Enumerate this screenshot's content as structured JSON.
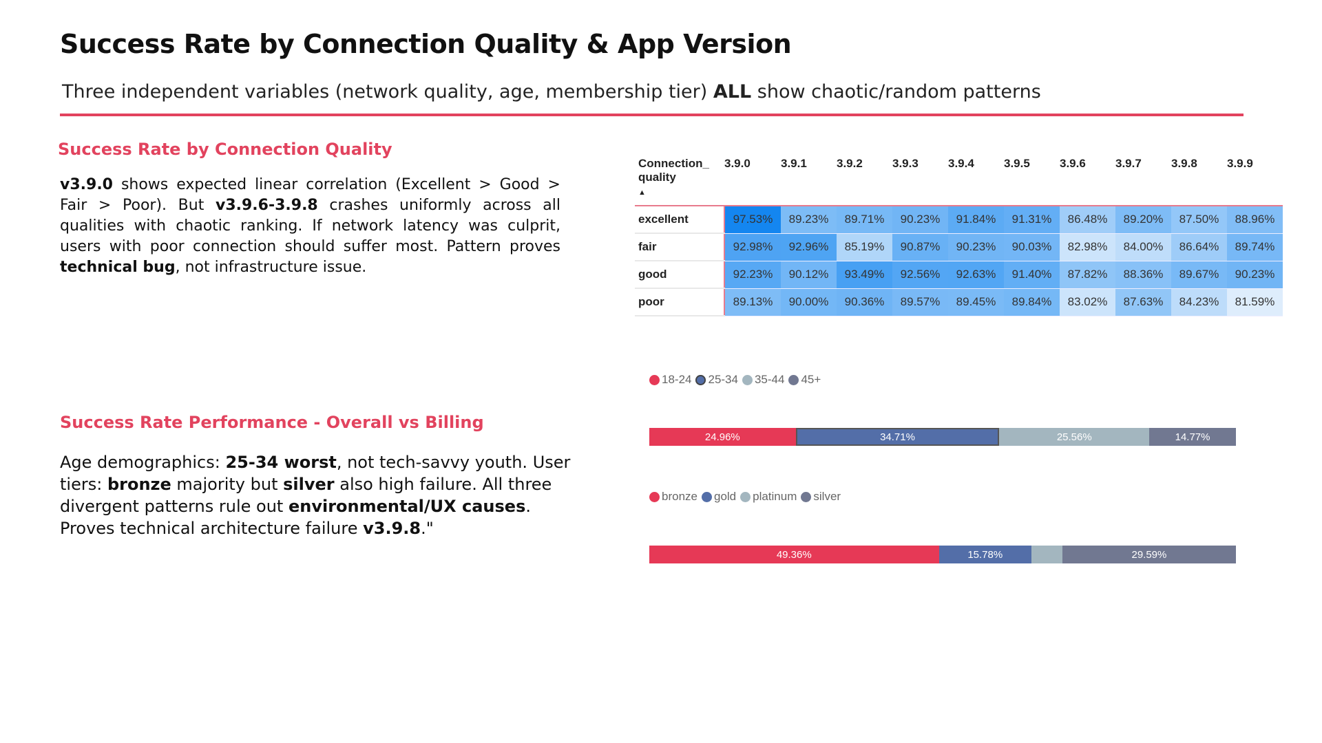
{
  "title": "Success Rate by Connection Quality & App Version",
  "subtitle": {
    "pre": "Three independent variables (network quality, age, membership tier) ",
    "bold": "ALL",
    "post": " show chaotic/random patterns"
  },
  "section1": {
    "heading": "Success Rate by Connection Quality",
    "text": [
      {
        "b": "v3.9.0"
      },
      {
        "t": " shows expected linear correlation (Excellent > Good > Fair > Poor). But "
      },
      {
        "b": "v3.9.6-3.9.8"
      },
      {
        "t": " crashes uniformly across all qualities with chaotic ranking. If network latency was culprit, users with poor connection should suffer most. Pattern proves "
      },
      {
        "b": "technical bug"
      },
      {
        "t": ", not infrastructure issue."
      }
    ]
  },
  "section2": {
    "heading": "Success Rate Performance - Overall vs Billing",
    "text": [
      {
        "t": "Age demographics: "
      },
      {
        "b": "25-34 worst"
      },
      {
        "t": ", not tech-savvy youth. User tiers: "
      },
      {
        "b": "bronze"
      },
      {
        "t": " majority but "
      },
      {
        "b": "silver"
      },
      {
        "t": " also high failure. All three divergent patterns rule out "
      },
      {
        "b": "environmental/UX causes"
      },
      {
        "t": ". Proves technical architecture failure "
      },
      {
        "b": "v3.9.8"
      },
      {
        "t": ".\""
      }
    ]
  },
  "chart_data": [
    {
      "type": "heatmap",
      "row_header": "Connection_ quality",
      "sort_indicator": "ascending",
      "columns": [
        "3.9.0",
        "3.9.1",
        "3.9.2",
        "3.9.3",
        "3.9.4",
        "3.9.5",
        "3.9.6",
        "3.9.7",
        "3.9.8",
        "3.9.9"
      ],
      "rows": [
        {
          "label": "excellent",
          "values": [
            97.53,
            89.23,
            89.71,
            90.23,
            91.84,
            91.31,
            86.48,
            89.2,
            87.5,
            88.96
          ]
        },
        {
          "label": "fair",
          "values": [
            92.98,
            92.96,
            85.19,
            90.87,
            90.23,
            90.03,
            82.98,
            84.0,
            86.64,
            89.74
          ]
        },
        {
          "label": "good",
          "values": [
            92.23,
            90.12,
            93.49,
            92.56,
            92.63,
            91.4,
            87.82,
            88.36,
            89.67,
            90.23
          ]
        },
        {
          "label": "poor",
          "values": [
            89.13,
            90.0,
            90.36,
            89.57,
            89.45,
            89.84,
            83.02,
            87.63,
            84.23,
            81.59
          ]
        }
      ],
      "unit": "%"
    },
    {
      "type": "bar",
      "stacked": "100%",
      "legend": "top-left",
      "series": [
        {
          "name": "18-24",
          "value": 24.96,
          "color": "#e63956",
          "label": "24.96%"
        },
        {
          "name": "25-34",
          "value": 34.71,
          "color": "#536ea8",
          "label": "34.71%"
        },
        {
          "name": "35-44",
          "value": 25.56,
          "color": "#a3b6bf",
          "label": "25.56%"
        },
        {
          "name": "45+",
          "value": 14.77,
          "color": "#717891",
          "label": "14.77%"
        }
      ]
    },
    {
      "type": "bar",
      "stacked": "100%",
      "legend": "top-left",
      "series": [
        {
          "name": "bronze",
          "value": 49.36,
          "color": "#e63956",
          "label": "49.36%"
        },
        {
          "name": "gold",
          "value": 15.78,
          "color": "#536ea8",
          "label": "15.78%"
        },
        {
          "name": "platinum",
          "value": 5.27,
          "color": "#a3b6bf",
          "label": ""
        },
        {
          "name": "silver",
          "value": 29.59,
          "color": "#717891",
          "label": "29.59%"
        }
      ]
    }
  ]
}
